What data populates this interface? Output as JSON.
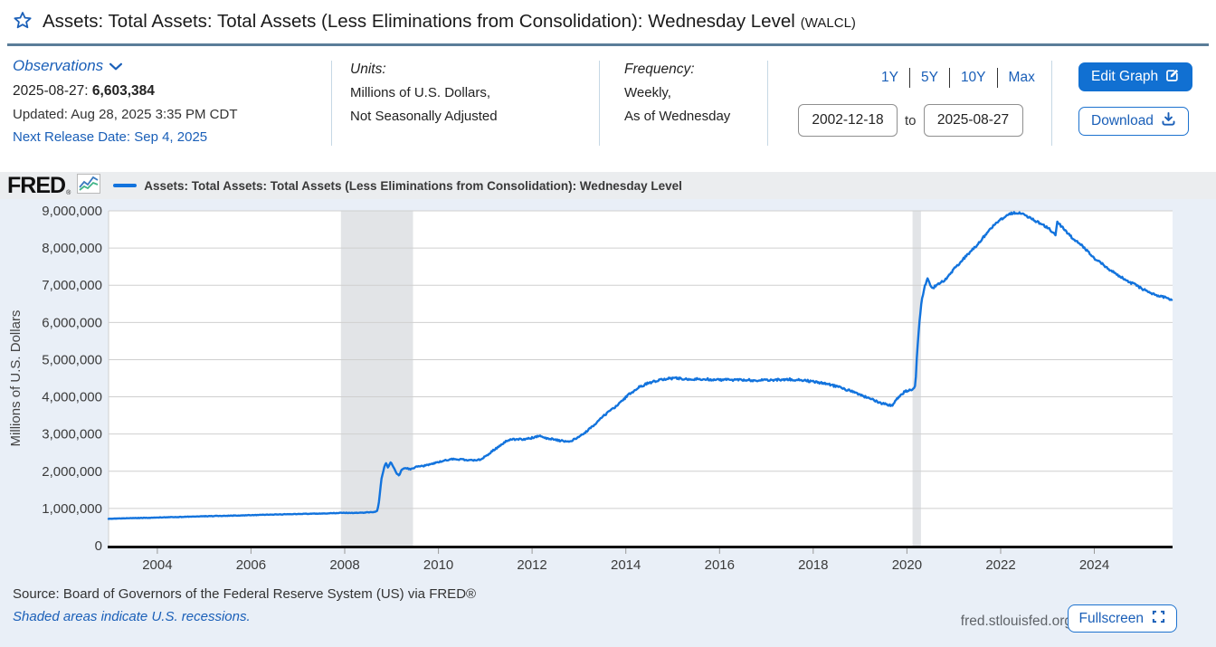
{
  "header": {
    "title": "Assets: Total Assets: Total Assets (Less Eliminations from Consolidation): Wednesday Level",
    "series_id": "(WALCL)"
  },
  "observations": {
    "label": "Observations",
    "latest_date": "2025-08-27:",
    "latest_value": "6,603,384",
    "updated": "Updated: Aug 28, 2025 3:35 PM CDT",
    "next_release": "Next Release Date: Sep 4, 2025"
  },
  "units": {
    "label": "Units:",
    "line1": "Millions of U.S. Dollars,",
    "line2": "Not Seasonally Adjusted"
  },
  "frequency": {
    "label": "Frequency:",
    "line1": "Weekly,",
    "line2": "As of Wednesday"
  },
  "range": {
    "presets": [
      "1Y",
      "5Y",
      "10Y",
      "Max"
    ],
    "start": "2002-12-18",
    "to_label": "to",
    "end": "2025-08-27"
  },
  "actions": {
    "edit_graph": "Edit Graph",
    "download": "Download",
    "fullscreen": "Fullscreen"
  },
  "branding": {
    "logo": "FRED",
    "logo_mark": "®",
    "site": "fred.stlouisfed.org"
  },
  "legend": {
    "series_label": "Assets: Total Assets: Total Assets (Less Eliminations from Consolidation): Wednesday Level"
  },
  "footer": {
    "source": "Source: Board of Governors of the Federal Reserve System (US) via FRED®",
    "recession_note": "Shaded areas indicate U.S. recessions."
  },
  "colors": {
    "accent_blue": "#1a5fb8",
    "button_blue": "#1170d2",
    "line_blue": "#1273dd",
    "title_rule": "#5a7d99",
    "chart_bg": "#e9eff7",
    "plot_bg": "#ffffff",
    "gridline": "#cfcfcf",
    "recession_band": "#e2e4e7",
    "axis": "#111111"
  },
  "chart_data": {
    "type": "line",
    "title": "Assets: Total Assets: Total Assets (Less Eliminations from Consolidation): Wednesday Level",
    "xlabel": "",
    "ylabel": "Millions of U.S. Dollars",
    "ylim": [
      0,
      9000000
    ],
    "ytick_step": 1000000,
    "xlim": [
      2002.96,
      2025.67
    ],
    "xticks": [
      2004,
      2006,
      2008,
      2010,
      2012,
      2014,
      2016,
      2018,
      2020,
      2022,
      2024
    ],
    "grid": true,
    "legend_position": "top",
    "recession_color": "#e2e4e7",
    "recessions": [
      {
        "start": 2007.92,
        "end": 2009.46
      },
      {
        "start": 2020.12,
        "end": 2020.3
      }
    ],
    "series": [
      {
        "name": "Assets: Total Assets: Total Assets (Less Eliminations from Consolidation): Wednesday Level",
        "color": "#1273dd",
        "points": [
          [
            2002.96,
            719000
          ],
          [
            2003.2,
            731000
          ],
          [
            2003.5,
            740000
          ],
          [
            2003.8,
            748000
          ],
          [
            2004.1,
            760000
          ],
          [
            2004.5,
            772000
          ],
          [
            2005.0,
            790000
          ],
          [
            2005.5,
            804000
          ],
          [
            2006.0,
            820000
          ],
          [
            2006.5,
            836000
          ],
          [
            2007.0,
            851000
          ],
          [
            2007.5,
            861000
          ],
          [
            2007.95,
            882000
          ],
          [
            2008.2,
            879000
          ],
          [
            2008.45,
            890000
          ],
          [
            2008.65,
            906000
          ],
          [
            2008.7,
            945000
          ],
          [
            2008.74,
            1260000
          ],
          [
            2008.78,
            1760000
          ],
          [
            2008.84,
            2080000
          ],
          [
            2008.88,
            2230000
          ],
          [
            2008.93,
            2090000
          ],
          [
            2008.98,
            2250000
          ],
          [
            2009.03,
            2140000
          ],
          [
            2009.1,
            1950000
          ],
          [
            2009.16,
            1880000
          ],
          [
            2009.22,
            2060000
          ],
          [
            2009.3,
            2080000
          ],
          [
            2009.4,
            2060000
          ],
          [
            2009.55,
            2120000
          ],
          [
            2009.75,
            2160000
          ],
          [
            2009.95,
            2230000
          ],
          [
            2010.15,
            2300000
          ],
          [
            2010.35,
            2330000
          ],
          [
            2010.55,
            2310000
          ],
          [
            2010.75,
            2290000
          ],
          [
            2010.9,
            2310000
          ],
          [
            2011.1,
            2490000
          ],
          [
            2011.3,
            2680000
          ],
          [
            2011.5,
            2850000
          ],
          [
            2011.7,
            2858000
          ],
          [
            2011.9,
            2868000
          ],
          [
            2012.05,
            2915000
          ],
          [
            2012.15,
            2948000
          ],
          [
            2012.25,
            2900000
          ],
          [
            2012.4,
            2868000
          ],
          [
            2012.6,
            2820000
          ],
          [
            2012.8,
            2804000
          ],
          [
            2012.95,
            2880000
          ],
          [
            2013.1,
            3010000
          ],
          [
            2013.3,
            3220000
          ],
          [
            2013.5,
            3450000
          ],
          [
            2013.7,
            3660000
          ],
          [
            2013.9,
            3870000
          ],
          [
            2014.1,
            4100000
          ],
          [
            2014.3,
            4270000
          ],
          [
            2014.5,
            4380000
          ],
          [
            2014.7,
            4450000
          ],
          [
            2014.85,
            4486000
          ],
          [
            2015.1,
            4500000
          ],
          [
            2015.4,
            4470000
          ],
          [
            2015.7,
            4480000
          ],
          [
            2016.0,
            4450000
          ],
          [
            2016.3,
            4460000
          ],
          [
            2016.6,
            4450000
          ],
          [
            2016.9,
            4440000
          ],
          [
            2017.2,
            4460000
          ],
          [
            2017.5,
            4470000
          ],
          [
            2017.75,
            4450000
          ],
          [
            2018.0,
            4410000
          ],
          [
            2018.25,
            4360000
          ],
          [
            2018.5,
            4280000
          ],
          [
            2018.75,
            4180000
          ],
          [
            2019.0,
            4050000
          ],
          [
            2019.25,
            3940000
          ],
          [
            2019.5,
            3810000
          ],
          [
            2019.68,
            3760000
          ],
          [
            2019.78,
            3930000
          ],
          [
            2019.85,
            4020000
          ],
          [
            2019.95,
            4140000
          ],
          [
            2020.05,
            4170000
          ],
          [
            2020.12,
            4160000
          ],
          [
            2020.18,
            4310000
          ],
          [
            2020.22,
            5250000
          ],
          [
            2020.27,
            6080000
          ],
          [
            2020.32,
            6620000
          ],
          [
            2020.38,
            6980000
          ],
          [
            2020.44,
            7170000
          ],
          [
            2020.47,
            7100000
          ],
          [
            2020.52,
            6960000
          ],
          [
            2020.56,
            6930000
          ],
          [
            2020.62,
            6990000
          ],
          [
            2020.72,
            7060000
          ],
          [
            2020.85,
            7180000
          ],
          [
            2020.98,
            7400000
          ],
          [
            2021.1,
            7560000
          ],
          [
            2021.3,
            7830000
          ],
          [
            2021.5,
            8090000
          ],
          [
            2021.7,
            8390000
          ],
          [
            2021.9,
            8680000
          ],
          [
            2022.1,
            8850000
          ],
          [
            2022.28,
            8954000
          ],
          [
            2022.45,
            8920000
          ],
          [
            2022.6,
            8830000
          ],
          [
            2022.8,
            8690000
          ],
          [
            2023.0,
            8550000
          ],
          [
            2023.1,
            8430000
          ],
          [
            2023.17,
            8342000
          ],
          [
            2023.21,
            8730000
          ],
          [
            2023.28,
            8610000
          ],
          [
            2023.4,
            8440000
          ],
          [
            2023.55,
            8250000
          ],
          [
            2023.7,
            8100000
          ],
          [
            2023.85,
            7930000
          ],
          [
            2024.0,
            7730000
          ],
          [
            2024.15,
            7590000
          ],
          [
            2024.3,
            7440000
          ],
          [
            2024.5,
            7270000
          ],
          [
            2024.7,
            7120000
          ],
          [
            2024.9,
            6990000
          ],
          [
            2025.1,
            6850000
          ],
          [
            2025.3,
            6740000
          ],
          [
            2025.5,
            6670000
          ],
          [
            2025.65,
            6603384
          ]
        ]
      }
    ]
  }
}
